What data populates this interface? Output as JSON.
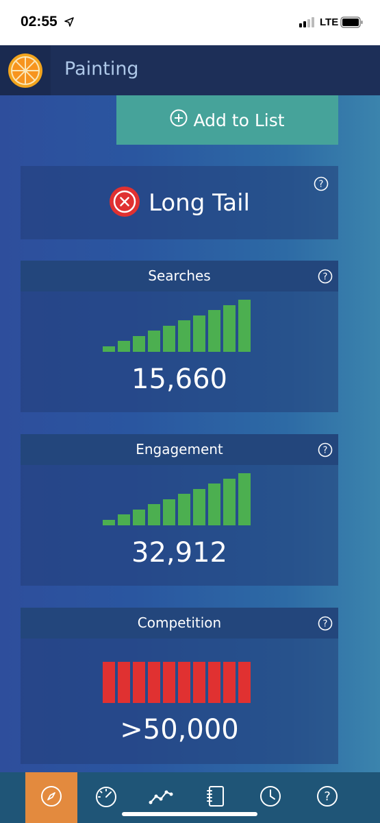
{
  "status_bar": {
    "time": "02:55",
    "network": "LTE",
    "icons": [
      "location-arrow-icon",
      "signal-icon",
      "battery-icon"
    ]
  },
  "navbar": {
    "logo_icon": "orange-slice-icon",
    "title": "Painting"
  },
  "add_button": {
    "label": "Add to List",
    "icon": "plus-circle-icon"
  },
  "longtail_card": {
    "label": "Long Tail",
    "icon": "red-x-circle-icon",
    "help_icon": "help-icon"
  },
  "searches": {
    "title": "Searches",
    "value": "15,660",
    "bars_filled": 10,
    "bars_total": 10,
    "bar_color": "#4caf50"
  },
  "engagement": {
    "title": "Engagement",
    "value": "32,912",
    "bars_filled": 10,
    "bars_total": 10,
    "bar_color": "#4caf50"
  },
  "competition": {
    "title": "Competition",
    "value": ">50,000",
    "bars_filled": 10,
    "bars_total": 10,
    "bar_color": "#e03131"
  },
  "tabbar": {
    "tabs": [
      {
        "icon": "compass-icon",
        "active": true
      },
      {
        "icon": "speedometer-icon",
        "active": false
      },
      {
        "icon": "trend-line-icon",
        "active": false
      },
      {
        "icon": "notebook-icon",
        "active": false
      },
      {
        "icon": "clock-icon",
        "active": false
      },
      {
        "icon": "help-icon",
        "active": false
      }
    ]
  },
  "colors": {
    "accent_teal": "#46a39a",
    "tab_active": "#e38a3e",
    "navbar": "#1d2f58"
  }
}
